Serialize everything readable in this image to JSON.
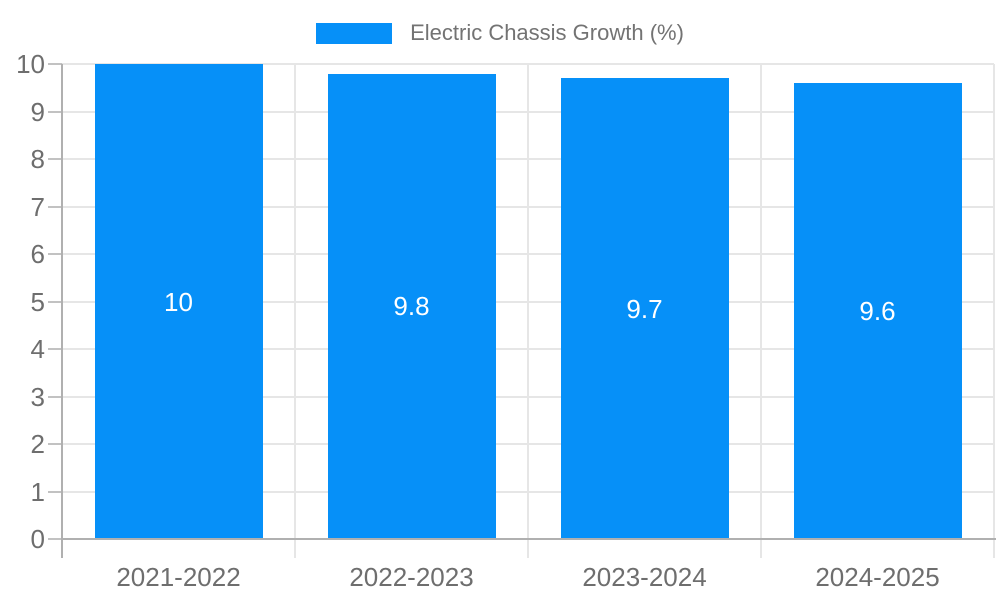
{
  "legend": {
    "swatch_color": "#0690f8",
    "text_color": "#737373"
  },
  "chart_data": {
    "type": "bar",
    "title": "Electric Chassis Growth (%)",
    "categories": [
      "2021-2022",
      "2022-2023",
      "2023-2024",
      "2024-2025"
    ],
    "series": [
      {
        "name": "Electric Chassis Growth (%)",
        "values": [
          10,
          9.8,
          9.7,
          9.6
        ]
      }
    ],
    "data_labels": [
      "10",
      "9.8",
      "9.7",
      "9.6"
    ],
    "xlabel": "",
    "ylabel": "",
    "ylim": [
      0,
      10
    ],
    "yticks": [
      0,
      1,
      2,
      3,
      4,
      5,
      6,
      7,
      8,
      9,
      10
    ],
    "grid": true,
    "legend_position": "top-center",
    "bar_color": "#0690f8",
    "value_label_color": "#ffffff",
    "axis_label_color": "#6e6e6e",
    "grid_color": "#e6e6e6",
    "axis_line_color": "#b0b0b0",
    "tick_color": "#c2c2c2",
    "background": "#ffffff"
  }
}
